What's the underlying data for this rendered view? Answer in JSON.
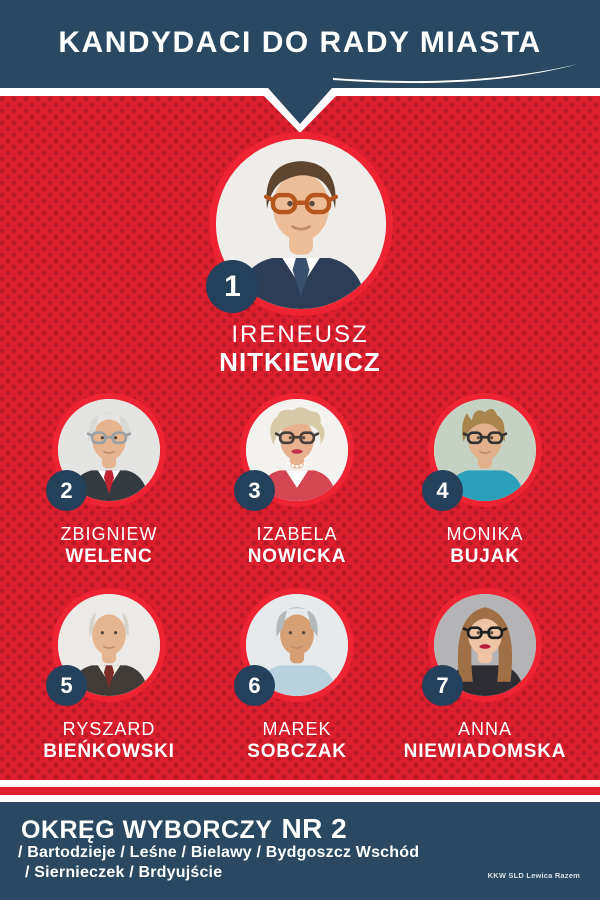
{
  "poster": {
    "title": "KANDYDACI DO RADY MIASTA",
    "colors": {
      "navy": "#2a4861",
      "badge_navy": "#24405a",
      "red_background": "#dd1e2c",
      "red_dot": "#b71927",
      "ring_red": "#ee2433",
      "stripe_red": "#e1202e",
      "text_white": "#ffffff"
    },
    "candidates": [
      {
        "number": "1",
        "first_name": "IRENEUSZ",
        "last_name": "NITKIEWICZ",
        "avatar": {
          "bg": "#efede9",
          "skin": "#ecbd96",
          "hair": "#5d4530",
          "hair_style": "short",
          "clothes": "#2c3d55",
          "shirt": "#ffffff",
          "tie": "#3a4f6b",
          "glasses": "#b5561f",
          "lips": null,
          "necklace": null
        }
      },
      {
        "number": "2",
        "first_name": "ZBIGNIEW",
        "last_name": "WELENC",
        "avatar": {
          "bg": "#e4e4e2",
          "skin": "#e5b48f",
          "hair": "#d8d8d4",
          "hair_style": "receding",
          "clothes": "#333a40",
          "shirt": "#ffffff",
          "tie": "#c12430",
          "glasses": "#9aa0a4",
          "lips": null,
          "necklace": null
        }
      },
      {
        "number": "3",
        "first_name": "IZABELA",
        "last_name": "NOWICKA",
        "avatar": {
          "bg": "#f4f2ef",
          "skin": "#e8b18e",
          "hair": "#d6c9a8",
          "hair_style": "curly",
          "clothes": "#d44652",
          "shirt": "#ffffff",
          "tie": null,
          "glasses": "#4a3f3a",
          "lips": "#c1334a",
          "necklace": "#ffffff"
        }
      },
      {
        "number": "4",
        "first_name": "MONIKA",
        "last_name": "BUJAK",
        "avatar": {
          "bg": "#c5d2c3",
          "skin": "#e2b08a",
          "hair": "#a9854e",
          "hair_style": "spiky",
          "clothes": "#2c9fba",
          "shirt": null,
          "tie": null,
          "glasses": "#333333",
          "lips": null,
          "necklace": null
        }
      },
      {
        "number": "5",
        "first_name": "RYSZARD",
        "last_name": "BIEŃKOWSKI",
        "avatar": {
          "bg": "#eceae7",
          "skin": "#e5b58f",
          "hair": "#d6d2c8",
          "hair_style": "balding",
          "clothes": "#413c38",
          "shirt": "#f1ece4",
          "tie": "#7a2e2a",
          "glasses": null,
          "lips": null,
          "necklace": null
        }
      },
      {
        "number": "6",
        "first_name": "MAREK",
        "last_name": "SOBCZAK",
        "avatar": {
          "bg": "#e6eaec",
          "skin": "#d79f74",
          "hair": "#b3b8ba",
          "hair_style": "receding",
          "clothes": "#b9d0dd",
          "shirt": null,
          "tie": null,
          "glasses": null,
          "lips": null,
          "necklace": null
        }
      },
      {
        "number": "7",
        "first_name": "ANNA",
        "last_name": "NIEWIADOMSKA",
        "avatar": {
          "bg": "#b4b4b6",
          "skin": "#eec4a4",
          "hair": "#a06f45",
          "hair_style": "long",
          "clothes": "#2e2d33",
          "shirt": null,
          "tie": null,
          "glasses": "#1f1f1f",
          "lips": "#b81f3a",
          "necklace": null
        }
      }
    ],
    "footer": {
      "district_title_part1": "OKRĘG WYBORCZY",
      "district_title_part2": "NR 2",
      "districts_line1": "/ Bartodzieje / Leśne / Bielawy / Bydgoszcz Wschód",
      "districts_line2": "/ Siernieczek / Brdyujście",
      "credit": "KKW SLD Lewica Razem"
    }
  }
}
